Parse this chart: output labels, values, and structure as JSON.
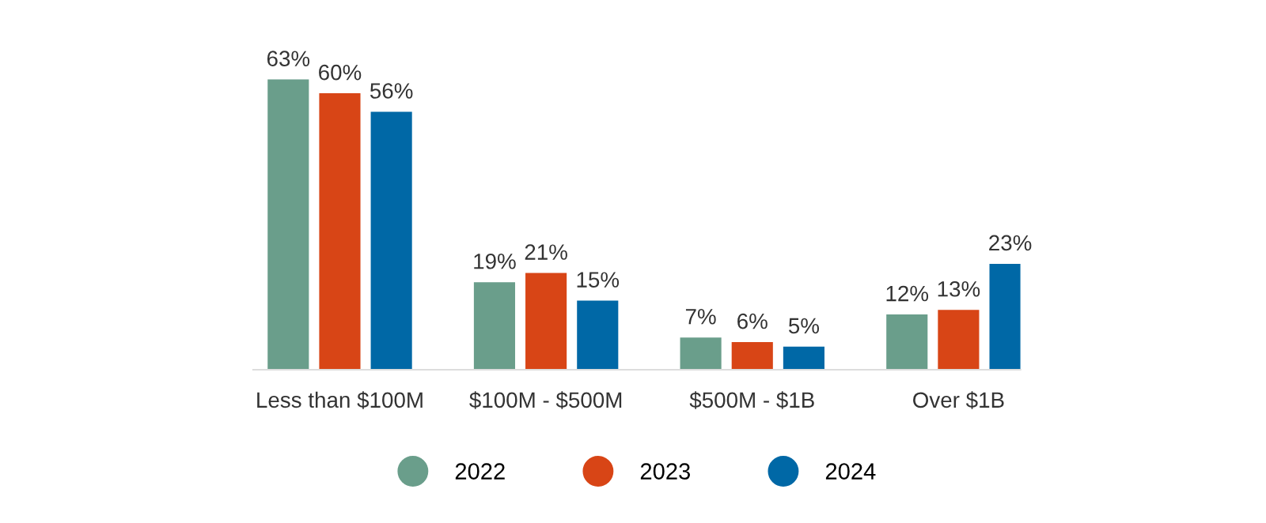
{
  "chart_data": {
    "type": "bar",
    "categories": [
      "Less than $100M",
      "$100M - $500M",
      "$500M - $1B",
      "Over $1B"
    ],
    "series": [
      {
        "name": "2022",
        "color": "#6a9e8b",
        "values": [
          63,
          19,
          7,
          12
        ],
        "value_labels": [
          "63%",
          "19%",
          "7%",
          "12%"
        ]
      },
      {
        "name": "2023",
        "color": "#d84516",
        "values": [
          60,
          21,
          6,
          13
        ],
        "value_labels": [
          "60%",
          "21%",
          "6%",
          "13%"
        ]
      },
      {
        "name": "2024",
        "color": "#0068a6",
        "values": [
          56,
          15,
          5,
          23
        ],
        "value_labels": [
          "56%",
          "15%",
          "5%",
          "23%"
        ]
      }
    ],
    "legend": "bottom"
  }
}
